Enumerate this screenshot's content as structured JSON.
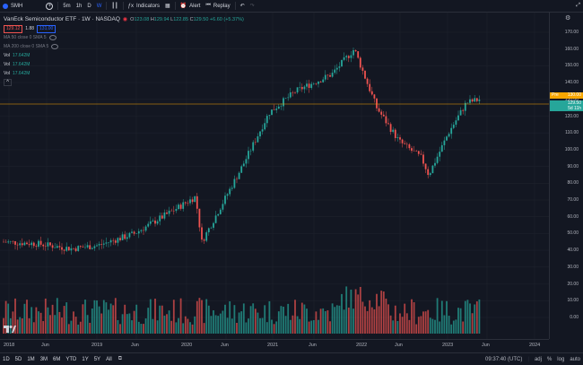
{
  "toolbar": {
    "symbol": "SMH",
    "intervals": [
      "5m",
      "1h",
      "D",
      "W"
    ],
    "active_interval": "W",
    "indicators_label": "Indicators",
    "alert_label": "Alert",
    "replay_label": "Replay"
  },
  "legend": {
    "title": "VanEck Semiconductor ETF · 1W · NASDAQ",
    "ohlc": {
      "o_label": "O",
      "o": "123.08",
      "h_label": "H",
      "h": "129.94",
      "l_label": "L",
      "l": "122.85",
      "c_label": "C",
      "c": "129.50",
      "change": "+6.60 (+5.37%)"
    },
    "bid": "129.12",
    "spread": "1.88",
    "ask": "131.00",
    "ma1": "MA 50 close 0 SMA 5",
    "ma2": "MA 200 close 0 SMA 5",
    "vol_label": "Vol",
    "vol_value": "17.642M"
  },
  "price_axis": {
    "ticks": [
      "170.00",
      "160.00",
      "150.00",
      "140.00",
      "130.00",
      "120.00",
      "110.00",
      "100.00",
      "90.00",
      "80.00",
      "70.00",
      "60.00",
      "50.00",
      "40.00",
      "30.00",
      "20.00",
      "10.00",
      "0.00"
    ],
    "tag_pre_label": "Pre",
    "tag_pre_value": "130.00",
    "tag_last": "129.50",
    "tag_countdown": "5d 11h"
  },
  "time_axis": {
    "ticks": [
      "2018",
      "Jun",
      "2019",
      "Jun",
      "2020",
      "Jun",
      "2021",
      "Jun",
      "2022",
      "Jun",
      "2023",
      "Jun",
      "2024"
    ]
  },
  "bottombar": {
    "ranges": [
      "1D",
      "5D",
      "1M",
      "3M",
      "6M",
      "YTD",
      "1Y",
      "5Y",
      "All"
    ],
    "time": "09:37:40 (UTC)",
    "adj": "adj",
    "pct": "%",
    "log": "log",
    "auto": "auto"
  },
  "colors": {
    "up": "#26a69a",
    "down": "#ef5350",
    "bg": "#131722"
  }
}
